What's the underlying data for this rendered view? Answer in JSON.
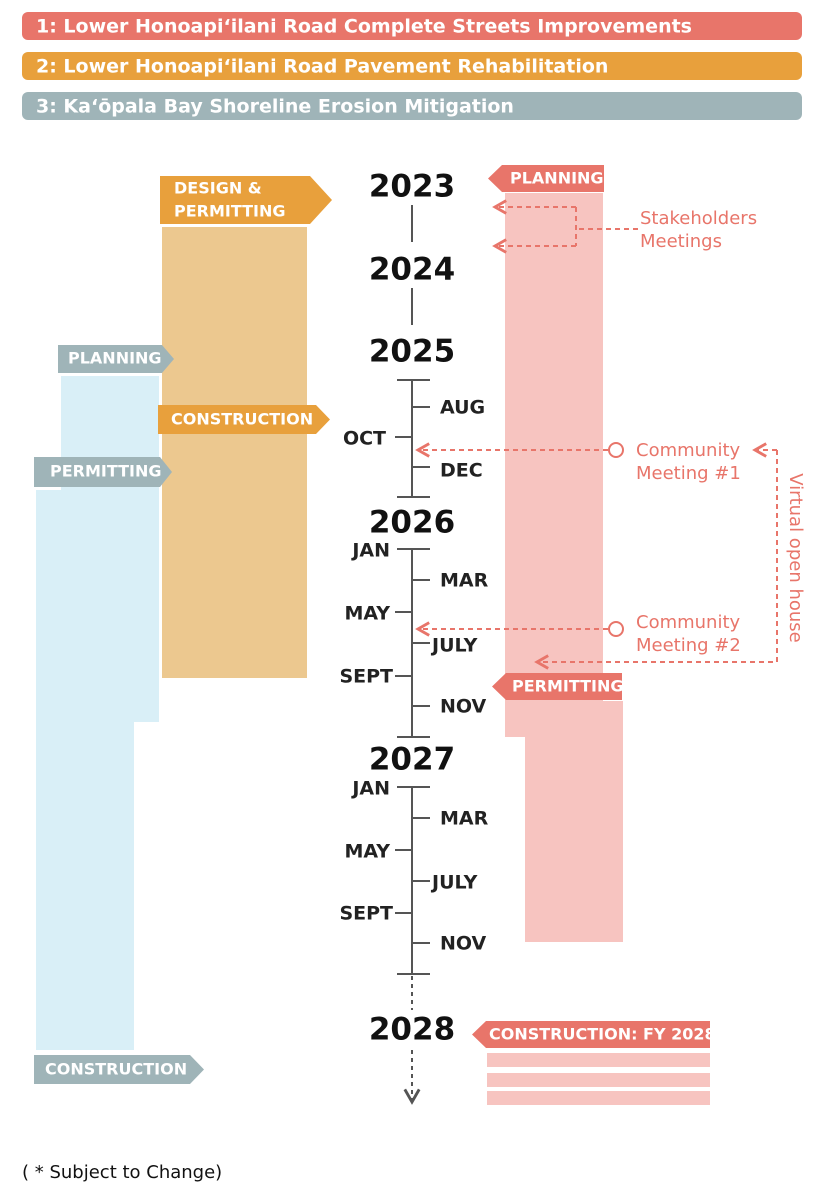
{
  "legend": [
    {
      "label": "1: Lower Honoapi‘ilani Road Complete Streets Improvements"
    },
    {
      "label": "2: Lower Honoapi‘ilani Road Pavement Rehabilitation"
    },
    {
      "label": "3: Ka‘ōpala Bay Shoreline Erosion Mitigation"
    }
  ],
  "years": [
    "2023",
    "2024",
    "2025",
    "2026",
    "2027",
    "2028"
  ],
  "months": {
    "2025": [
      "AUG",
      "OCT",
      "DEC"
    ],
    "2026": [
      "JAN",
      "MAR",
      "MAY",
      "JULY",
      "SEPT",
      "NOV"
    ],
    "2027": [
      "JAN",
      "MAR",
      "MAY",
      "JULY",
      "SEPT",
      "NOV"
    ]
  },
  "project_1": {
    "planning": "PLANNING",
    "permitting": "PERMITTING",
    "construction": "CONSTRUCTION: FY 2028"
  },
  "project_2": {
    "design": [
      "DESIGN &",
      "PERMITTING"
    ],
    "construction": "CONSTRUCTION"
  },
  "project_3": {
    "planning": "PLANNING",
    "permitting": "PERMITTING",
    "construction": "CONSTRUCTION"
  },
  "annotations": {
    "stakeholders": [
      "Stakeholders",
      "Meetings"
    ],
    "meeting_1": [
      "Community",
      "Meeting #1"
    ],
    "meeting_2": [
      "Community",
      "Meeting #2"
    ],
    "virtual": "Virtual open house"
  },
  "footnote": "( * Subject to Change)"
}
